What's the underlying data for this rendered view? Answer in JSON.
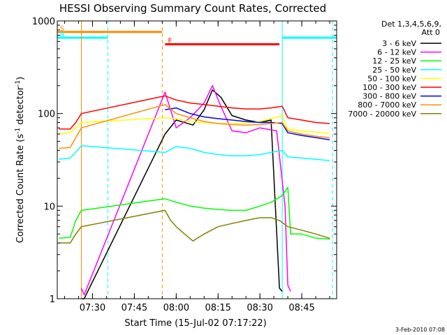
{
  "chart_data": {
    "type": "line",
    "title": "HESSI Observing Summary Count Rates, Corrected",
    "xlabel": "Start Time (15-Jul-02 07:17:22)",
    "ylabel_parts": [
      "Corrected Count Rate (s",
      "-1",
      " detector",
      "-1",
      ")"
    ],
    "ylim": [
      1,
      1000
    ],
    "yscale": "log",
    "y_ticks": [
      {
        "value": 1,
        "label": "1"
      },
      {
        "value": 10,
        "label": "10"
      },
      {
        "value": 100,
        "label": "100"
      },
      {
        "value": 1000,
        "label": "1000"
      }
    ],
    "xlim": [
      "07:17:22",
      "08:57:30"
    ],
    "x_ticks": [
      "07:30",
      "07:45",
      "08:00",
      "08:15",
      "08:30",
      "08:45"
    ],
    "legend_title": [
      "Det 1,3,4,5,6,9,",
      "Att 0"
    ],
    "legend_position": "right",
    "series": [
      {
        "name": "3 - 6 keV",
        "color": "#000000",
        "points": [
          [
            "07:26:00",
            1
          ],
          [
            "07:27:00",
            1
          ],
          [
            "07:56:00",
            60
          ],
          [
            "08:00:00",
            85
          ],
          [
            "08:06:00",
            75
          ],
          [
            "08:10:00",
            110
          ],
          [
            "08:13:00",
            180
          ],
          [
            "08:16:00",
            150
          ],
          [
            "08:20:00",
            95
          ],
          [
            "08:25:00",
            85
          ],
          [
            "08:30:00",
            80
          ],
          [
            "08:34:00",
            85
          ],
          [
            "08:37:00",
            1.3
          ],
          [
            "08:38:00",
            1.2
          ]
        ]
      },
      {
        "name": "6 - 12 keV",
        "color": "#ff00ff",
        "points": [
          [
            "07:26:00",
            1.3
          ],
          [
            "07:27:00",
            1.1
          ],
          [
            "07:56:00",
            170
          ],
          [
            "08:00:00",
            70
          ],
          [
            "08:05:00",
            90
          ],
          [
            "08:10:00",
            130
          ],
          [
            "08:13:00",
            200
          ],
          [
            "08:16:00",
            120
          ],
          [
            "08:20:00",
            65
          ],
          [
            "08:25:00",
            62
          ],
          [
            "08:30:00",
            70
          ],
          [
            "08:36:00",
            65
          ],
          [
            "08:39:00",
            10
          ],
          [
            "08:40:00",
            1.4
          ],
          [
            "08:41:00",
            1.2
          ]
        ]
      },
      {
        "name": "12 - 25 keV",
        "color": "#00ff00",
        "points": [
          [
            "07:18:00",
            4.5
          ],
          [
            "07:22:00",
            4.6
          ],
          [
            "07:24:00",
            7
          ],
          [
            "07:26:00",
            9
          ],
          [
            "07:56:00",
            12
          ],
          [
            "08:00:00",
            11
          ],
          [
            "08:05:00",
            10
          ],
          [
            "08:10:00",
            9.5
          ],
          [
            "08:15:00",
            9.2
          ],
          [
            "08:20:00",
            9
          ],
          [
            "08:25:00",
            9
          ],
          [
            "08:30:00",
            10
          ],
          [
            "08:34:00",
            11
          ],
          [
            "08:38:00",
            13
          ],
          [
            "08:40:00",
            16
          ],
          [
            "08:41:00",
            5
          ],
          [
            "08:45:00",
            5
          ],
          [
            "08:50:00",
            4.5
          ],
          [
            "08:55:00",
            4.4
          ]
        ]
      },
      {
        "name": "25 - 50 keV",
        "color": "#00ffff",
        "points": [
          [
            "07:18:00",
            32
          ],
          [
            "07:22:00",
            33
          ],
          [
            "07:24:00",
            38
          ],
          [
            "07:26:00",
            45
          ],
          [
            "07:56:00",
            38
          ],
          [
            "08:00:00",
            44
          ],
          [
            "08:05:00",
            42
          ],
          [
            "08:10:00",
            38
          ],
          [
            "08:15:00",
            36
          ],
          [
            "08:20:00",
            35
          ],
          [
            "08:25:00",
            35
          ],
          [
            "08:30:00",
            36
          ],
          [
            "08:34:00",
            38
          ],
          [
            "08:38:00",
            40
          ],
          [
            "08:40:00",
            34
          ],
          [
            "08:45:00",
            33
          ],
          [
            "08:50:00",
            32
          ],
          [
            "08:55:00",
            31
          ]
        ]
      },
      {
        "name": "50 - 100 keV",
        "color": "#ffff00",
        "points": [
          [
            "07:18:00",
            60
          ],
          [
            "07:22:00",
            62
          ],
          [
            "07:24:00",
            70
          ],
          [
            "07:26:00",
            80
          ],
          [
            "07:56:00",
            90
          ],
          [
            "08:00:00",
            88
          ],
          [
            "08:05:00",
            82
          ],
          [
            "08:10:00",
            80
          ],
          [
            "08:15:00",
            78
          ],
          [
            "08:20:00",
            78
          ],
          [
            "08:25:00",
            79
          ],
          [
            "08:30:00",
            82
          ],
          [
            "08:34:00",
            88
          ],
          [
            "08:38:00",
            95
          ],
          [
            "08:40:00",
            68
          ],
          [
            "08:45:00",
            65
          ],
          [
            "08:50:00",
            63
          ],
          [
            "08:55:00",
            61
          ]
        ]
      },
      {
        "name": "100 - 300 keV",
        "color": "#ff0000",
        "points": [
          [
            "07:18:00",
            68
          ],
          [
            "07:22:00",
            68
          ],
          [
            "07:24:00",
            80
          ],
          [
            "07:26:00",
            100
          ],
          [
            "07:56:00",
            155
          ],
          [
            "08:00:00",
            140
          ],
          [
            "08:05:00",
            130
          ],
          [
            "08:10:00",
            125
          ],
          [
            "08:15:00",
            120
          ],
          [
            "08:20:00",
            115
          ],
          [
            "08:25:00",
            112
          ],
          [
            "08:30:00",
            112
          ],
          [
            "08:34:00",
            115
          ],
          [
            "08:38:00",
            120
          ],
          [
            "08:40:00",
            90
          ],
          [
            "08:45:00",
            85
          ],
          [
            "08:50:00",
            80
          ],
          [
            "08:55:00",
            78
          ]
        ]
      },
      {
        "name": "300 - 800 keV",
        "color": "#0000ff",
        "points": [
          [
            "07:56:00",
            110
          ],
          [
            "08:00:00",
            115
          ],
          [
            "08:05:00",
            100
          ],
          [
            "08:10:00",
            92
          ],
          [
            "08:15:00",
            88
          ],
          [
            "08:20:00",
            85
          ],
          [
            "08:25:00",
            82
          ],
          [
            "08:30:00",
            80
          ],
          [
            "08:34:00",
            80
          ],
          [
            "08:38:00",
            78
          ],
          [
            "08:40:00",
            62
          ],
          [
            "08:45:00",
            58
          ],
          [
            "08:50:00",
            55
          ],
          [
            "08:55:00",
            52
          ]
        ]
      },
      {
        "name": "800 - 7000 keV",
        "color": "#ff8c00",
        "points": [
          [
            "07:18:00",
            42
          ],
          [
            "07:22:00",
            43
          ],
          [
            "07:24:00",
            55
          ],
          [
            "07:26:00",
            70
          ],
          [
            "07:56:00",
            125
          ],
          [
            "08:00:00",
            100
          ],
          [
            "08:05:00",
            90
          ],
          [
            "08:10:00",
            82
          ],
          [
            "08:15:00",
            78
          ],
          [
            "08:20:00",
            76
          ],
          [
            "08:25:00",
            75
          ],
          [
            "08:30:00",
            76
          ],
          [
            "08:34:00",
            78
          ],
          [
            "08:38:00",
            80
          ],
          [
            "08:40:00",
            65
          ],
          [
            "08:45:00",
            60
          ],
          [
            "08:50:00",
            57
          ],
          [
            "08:55:00",
            55
          ]
        ]
      },
      {
        "name": "7000 - 20000 keV",
        "color": "#808000",
        "points": [
          [
            "07:18:00",
            4
          ],
          [
            "07:22:00",
            4
          ],
          [
            "07:24:00",
            5
          ],
          [
            "07:26:00",
            6
          ],
          [
            "07:56:00",
            9
          ],
          [
            "07:58:00",
            7
          ],
          [
            "08:00:00",
            6
          ],
          [
            "08:03:00",
            5
          ],
          [
            "08:06:00",
            4.2
          ],
          [
            "08:10:00",
            5
          ],
          [
            "08:15:00",
            6
          ],
          [
            "08:20:00",
            6.5
          ],
          [
            "08:25:00",
            7
          ],
          [
            "08:30:00",
            7.5
          ],
          [
            "08:34:00",
            7.5
          ],
          [
            "08:37:00",
            7
          ],
          [
            "08:40:00",
            6
          ],
          [
            "08:45:00",
            5.5
          ],
          [
            "08:50:00",
            5
          ],
          [
            "08:55:00",
            4.5
          ]
        ]
      }
    ],
    "flag_bars": [
      {
        "label": "S",
        "color": "#ff8c00",
        "start": "07:17:22",
        "end": "07:55:00",
        "y": 760
      },
      {
        "label": "N",
        "color": "#00ffff",
        "start": "07:17:22",
        "end": "07:35:30",
        "y": 660
      },
      {
        "label": "",
        "color": "#00ffff",
        "start": "08:38:00",
        "end": "08:57:30",
        "y": 660
      },
      {
        "label": "F",
        "color": "#ff0000",
        "start": "07:56:00",
        "end": "08:37:00",
        "y": 560
      }
    ],
    "vertical_lines": [
      {
        "time": "07:26:00",
        "color": "#ff8c00",
        "dashed": false
      },
      {
        "time": "07:35:30",
        "color": "#00ffff",
        "dashed": true
      },
      {
        "time": "07:55:00",
        "color": "#ff8c00",
        "dashed": true
      },
      {
        "time": "08:38:00",
        "color": "#00ffff",
        "dashed": false
      },
      {
        "time": "08:56:00",
        "color": "#00ffff",
        "dashed": true
      }
    ],
    "footer": "3-Feb-2010 07:08"
  }
}
